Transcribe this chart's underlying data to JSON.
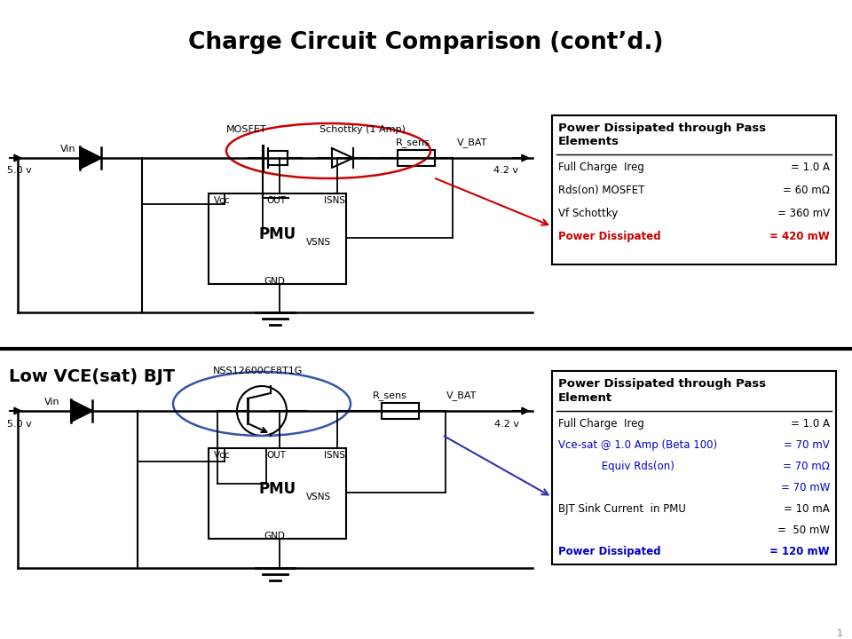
{
  "title": "Charge Circuit Comparison (cont’d.)",
  "title_fontsize": 19,
  "background": "#ffffff",
  "top_circuit": {
    "label_5v": "5.0 v",
    "label_vin": "Vin",
    "label_vbat": "V_BAT",
    "label_42v": "4.2 v",
    "label_mosfet": "MOSFET",
    "label_schottky": "Schottky (1 Amp)",
    "label_rsens": "R_sens",
    "label_pmu": "PMU",
    "label_vcc": "Vcc",
    "label_out": "OUT",
    "label_isns": "ISNS",
    "label_vsns": "VSNS",
    "label_gnd": "GND"
  },
  "bottom_circuit": {
    "label": "Low VCE(sat) BJT",
    "label_5v": "5.0 v",
    "label_vin": "Vin",
    "label_vbat": "V_BAT",
    "label_42v": "4.2 v",
    "label_part": "NSS12600CF8T1G",
    "label_rsens": "R_sens",
    "label_pmu": "PMU",
    "label_vcc": "Vcc",
    "label_out": "OUT",
    "label_isns": "ISNS",
    "label_vsns": "VSNS",
    "label_gnd": "GND"
  },
  "box1": {
    "title_line1": "Power Dissipated through Pass",
    "title_line2": "Elements",
    "rows": [
      {
        "label": "Full Charge  Ireg",
        "value": "= 1.0 A",
        "color": "black"
      },
      {
        "label": "Rds(on) MOSFET",
        "value": "= 60 mΩ",
        "color": "black"
      },
      {
        "label": "Vf Schottky",
        "value": "= 360 mV",
        "color": "black"
      },
      {
        "label": "Power Dissipated",
        "value": "= 420 mW",
        "color": "#cc0000"
      }
    ]
  },
  "box2": {
    "title_line1": "Power Dissipated through Pass",
    "title_line2": "Element",
    "rows": [
      {
        "label": "Full Charge  Ireg",
        "value": "= 1.0 A",
        "color": "black",
        "right_only": false
      },
      {
        "label": "Vce-sat @ 1.0 Amp (Beta 100)",
        "value": "= 70 mV",
        "color": "#0000cc",
        "right_only": false
      },
      {
        "label": "             Equiv Rds(on)",
        "value": "= 70 mΩ",
        "color": "#0000cc",
        "right_only": false
      },
      {
        "label": "",
        "value": "= 70 mW",
        "color": "#0000cc",
        "right_only": true
      },
      {
        "label": "BJT Sink Current  in PMU",
        "value": "= 10 mA",
        "color": "black",
        "right_only": false
      },
      {
        "label": "",
        "value": "=  50 mW",
        "color": "black",
        "right_only": true
      },
      {
        "label": "Power Dissipated",
        "value": "= 120 mW",
        "color": "#0000cc",
        "right_only": false
      }
    ]
  },
  "red_arrow_color": "#cc0000",
  "blue_arrow_color": "#3333aa",
  "circuit_line_color": "#000000",
  "ellipse_color_top": "#cc0000",
  "ellipse_color_bottom": "#3355aa"
}
